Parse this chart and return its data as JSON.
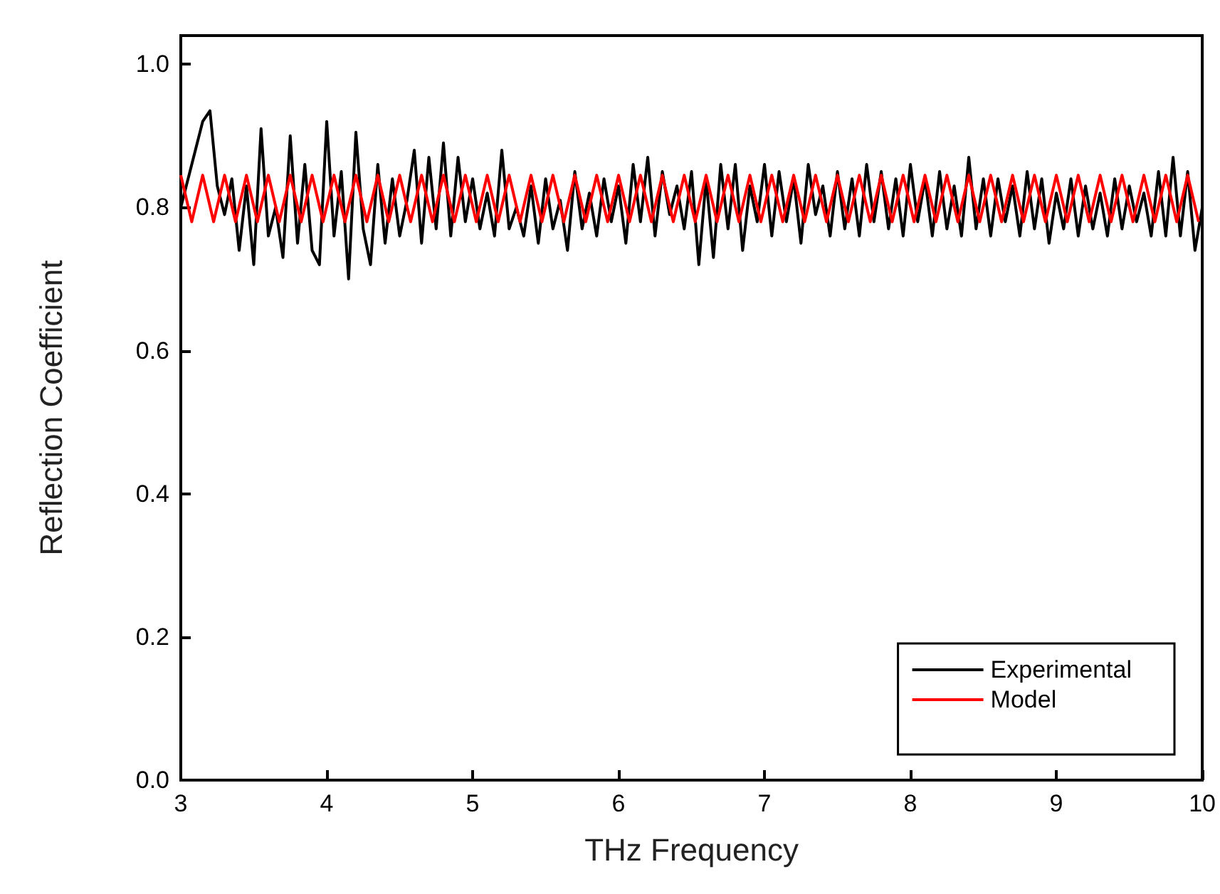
{
  "chart_data": {
    "type": "line",
    "xlabel": "THz Frequency",
    "ylabel": "Reflection Coefficient",
    "xlim": [
      3,
      10
    ],
    "xticks": [
      3,
      4,
      5,
      6,
      7,
      8,
      9,
      10
    ],
    "ylim": [
      0,
      1.04
    ],
    "yticks": [
      {
        "value": 0,
        "label": "0.0"
      },
      0.2,
      0.4,
      0.6,
      0.8,
      {
        "value": 1,
        "label": "1.0"
      }
    ],
    "grid": false,
    "legend": "bottom right",
    "marker": "none",
    "line_style": "solid",
    "series": [
      {
        "name": "Experimental",
        "color": "#000000",
        "x": [
          3.0,
          3.05,
          3.1,
          3.15,
          3.2,
          3.25,
          3.3,
          3.35,
          3.4,
          3.45,
          3.5,
          3.55,
          3.6,
          3.65,
          3.7,
          3.75,
          3.8,
          3.85,
          3.9,
          3.95,
          4.0,
          4.05,
          4.1,
          4.15,
          4.2,
          4.25,
          4.3,
          4.35,
          4.4,
          4.45,
          4.5,
          4.55,
          4.6,
          4.65,
          4.7,
          4.75,
          4.8,
          4.85,
          4.9,
          4.95,
          5.0,
          5.05,
          5.1,
          5.15,
          5.2,
          5.25,
          5.3,
          5.35,
          5.4,
          5.45,
          5.5,
          5.55,
          5.6,
          5.65,
          5.7,
          5.75,
          5.8,
          5.85,
          5.9,
          5.95,
          6.0,
          6.05,
          6.1,
          6.15,
          6.2,
          6.25,
          6.3,
          6.35,
          6.4,
          6.45,
          6.5,
          6.55,
          6.6,
          6.65,
          6.7,
          6.75,
          6.8,
          6.85,
          6.9,
          6.95,
          7.0,
          7.05,
          7.1,
          7.15,
          7.2,
          7.25,
          7.3,
          7.35,
          7.4,
          7.45,
          7.5,
          7.55,
          7.6,
          7.65,
          7.7,
          7.75,
          7.8,
          7.85,
          7.9,
          7.95,
          8.0,
          8.05,
          8.1,
          8.15,
          8.2,
          8.25,
          8.3,
          8.35,
          8.4,
          8.45,
          8.5,
          8.55,
          8.6,
          8.65,
          8.7,
          8.75,
          8.8,
          8.85,
          8.9,
          8.95,
          9.0,
          9.05,
          9.1,
          9.15,
          9.2,
          9.25,
          9.3,
          9.35,
          9.4,
          9.45,
          9.5,
          9.55,
          9.6,
          9.65,
          9.7,
          9.75,
          9.8,
          9.85,
          9.9,
          9.95,
          10.0
        ],
        "values": [
          0.8,
          0.84,
          0.88,
          0.92,
          0.935,
          0.83,
          0.79,
          0.84,
          0.74,
          0.83,
          0.72,
          0.91,
          0.76,
          0.8,
          0.73,
          0.9,
          0.75,
          0.86,
          0.74,
          0.72,
          0.92,
          0.76,
          0.85,
          0.7,
          0.905,
          0.77,
          0.72,
          0.86,
          0.75,
          0.84,
          0.76,
          0.81,
          0.88,
          0.75,
          0.87,
          0.77,
          0.89,
          0.76,
          0.87,
          0.78,
          0.84,
          0.77,
          0.82,
          0.76,
          0.88,
          0.77,
          0.8,
          0.76,
          0.83,
          0.75,
          0.84,
          0.77,
          0.81,
          0.74,
          0.85,
          0.77,
          0.82,
          0.76,
          0.84,
          0.78,
          0.83,
          0.75,
          0.86,
          0.78,
          0.87,
          0.76,
          0.85,
          0.79,
          0.83,
          0.77,
          0.85,
          0.72,
          0.84,
          0.73,
          0.86,
          0.77,
          0.86,
          0.74,
          0.83,
          0.78,
          0.86,
          0.76,
          0.85,
          0.78,
          0.84,
          0.75,
          0.86,
          0.79,
          0.83,
          0.76,
          0.85,
          0.77,
          0.84,
          0.76,
          0.86,
          0.78,
          0.85,
          0.77,
          0.84,
          0.76,
          0.86,
          0.78,
          0.84,
          0.76,
          0.85,
          0.77,
          0.83,
          0.76,
          0.87,
          0.77,
          0.84,
          0.76,
          0.84,
          0.78,
          0.83,
          0.76,
          0.85,
          0.77,
          0.84,
          0.75,
          0.82,
          0.77,
          0.84,
          0.76,
          0.83,
          0.77,
          0.82,
          0.76,
          0.84,
          0.77,
          0.83,
          0.78,
          0.82,
          0.76,
          0.85,
          0.76,
          0.87,
          0.76,
          0.85,
          0.74,
          0.8
        ]
      },
      {
        "name": "Model",
        "color": "#ff0000",
        "x": [
          3,
          3.075,
          3.15,
          3.225,
          3.3,
          3.375,
          3.45,
          3.525,
          3.6,
          3.675,
          3.75,
          3.825,
          3.9,
          3.975,
          4.05,
          4.125,
          4.2,
          4.275,
          4.35,
          4.425,
          4.5,
          4.575,
          4.65,
          4.725,
          4.8,
          4.875,
          4.95,
          5.025,
          5.1,
          5.175,
          5.25,
          5.325,
          5.4,
          5.475,
          5.55,
          5.625,
          5.7,
          5.775,
          5.85,
          5.925,
          6,
          6.075,
          6.15,
          6.225,
          6.3,
          6.375,
          6.45,
          6.525,
          6.6,
          6.675,
          6.75,
          6.825,
          6.9,
          6.975,
          7.05,
          7.125,
          7.2,
          7.275,
          7.35,
          7.425,
          7.5,
          7.575,
          7.65,
          7.725,
          7.8,
          7.875,
          7.95,
          8.025,
          8.1,
          8.175,
          8.25,
          8.325,
          8.4,
          8.475,
          8.55,
          8.625,
          8.7,
          8.775,
          8.85,
          8.925,
          9,
          9.075,
          9.15,
          9.225,
          9.3,
          9.375,
          9.45,
          9.525,
          9.6,
          9.675,
          9.75,
          9.825,
          9.9,
          9.975
        ],
        "values": [
          0.845,
          0.78,
          0.845,
          0.78,
          0.845,
          0.78,
          0.845,
          0.78,
          0.845,
          0.78,
          0.845,
          0.78,
          0.845,
          0.78,
          0.845,
          0.78,
          0.845,
          0.78,
          0.845,
          0.78,
          0.845,
          0.78,
          0.845,
          0.78,
          0.845,
          0.78,
          0.845,
          0.78,
          0.845,
          0.78,
          0.845,
          0.78,
          0.845,
          0.78,
          0.845,
          0.78,
          0.845,
          0.78,
          0.845,
          0.78,
          0.845,
          0.78,
          0.845,
          0.78,
          0.845,
          0.78,
          0.845,
          0.78,
          0.845,
          0.78,
          0.845,
          0.78,
          0.845,
          0.78,
          0.845,
          0.78,
          0.845,
          0.78,
          0.845,
          0.78,
          0.845,
          0.78,
          0.845,
          0.78,
          0.845,
          0.78,
          0.845,
          0.78,
          0.845,
          0.78,
          0.845,
          0.78,
          0.845,
          0.78,
          0.845,
          0.78,
          0.845,
          0.78,
          0.845,
          0.78,
          0.845,
          0.78,
          0.845,
          0.78,
          0.845,
          0.78,
          0.845,
          0.78,
          0.845,
          0.78,
          0.845,
          0.78,
          0.845,
          0.78
        ]
      }
    ]
  }
}
